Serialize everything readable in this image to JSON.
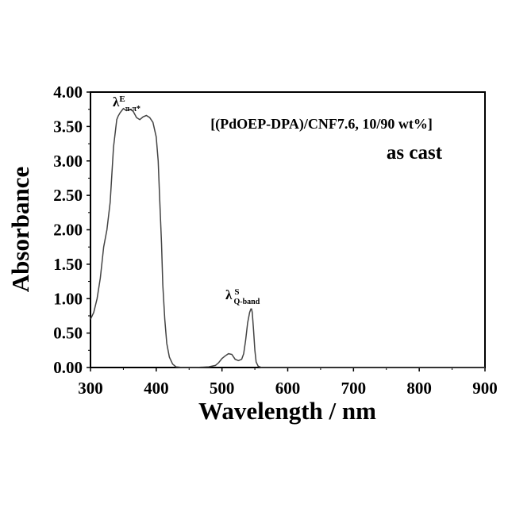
{
  "chart_data": {
    "type": "line",
    "title": "",
    "xlabel": "Wavelength / nm",
    "ylabel": "Absorbance",
    "xlim": [
      300,
      900
    ],
    "ylim": [
      0.0,
      4.0
    ],
    "x_ticks": [
      "300",
      "400",
      "500",
      "600",
      "700",
      "800",
      "900"
    ],
    "y_ticks": [
      "0.00",
      "0.50",
      "1.00",
      "1.50",
      "2.00",
      "2.50",
      "3.00",
      "3.50",
      "4.00"
    ],
    "grid": false,
    "legend": "none",
    "annotations": {
      "sample": "[(PdOEP-DPA)/CNF7.6, 10/90 wt%]",
      "condition": "as cast",
      "peak1_symbol": "λ",
      "peak1_sup": "E",
      "peak1_sub": "π-π*",
      "peak2_symbol": "λ",
      "peak2_sup": "S",
      "peak2_sub": "Q-band"
    },
    "series": [
      {
        "color": "#444444",
        "x": [
          300,
          305,
          310,
          315,
          320,
          325,
          330,
          335,
          340,
          342,
          345,
          350,
          355,
          360,
          365,
          370,
          375,
          380,
          385,
          390,
          395,
          400,
          403,
          405,
          408,
          410,
          413,
          416,
          420,
          425,
          430,
          440,
          460,
          480,
          490,
          495,
          500,
          505,
          510,
          515,
          520,
          525,
          530,
          533,
          536,
          539,
          542,
          544,
          545,
          546,
          548,
          550,
          552,
          555,
          560,
          600,
          700,
          800,
          900
        ],
        "y": [
          0.7,
          0.8,
          1.0,
          1.3,
          1.75,
          2.0,
          2.4,
          3.2,
          3.6,
          3.65,
          3.7,
          3.76,
          3.73,
          3.75,
          3.72,
          3.63,
          3.6,
          3.64,
          3.66,
          3.63,
          3.56,
          3.35,
          3.0,
          2.5,
          1.8,
          1.2,
          0.7,
          0.35,
          0.15,
          0.05,
          0.01,
          0.0,
          0.0,
          0.01,
          0.03,
          0.07,
          0.13,
          0.17,
          0.2,
          0.19,
          0.12,
          0.1,
          0.12,
          0.2,
          0.4,
          0.65,
          0.8,
          0.85,
          0.85,
          0.8,
          0.55,
          0.25,
          0.08,
          0.02,
          0.0,
          0.0,
          0.0,
          0.0,
          0.0
        ]
      }
    ]
  }
}
